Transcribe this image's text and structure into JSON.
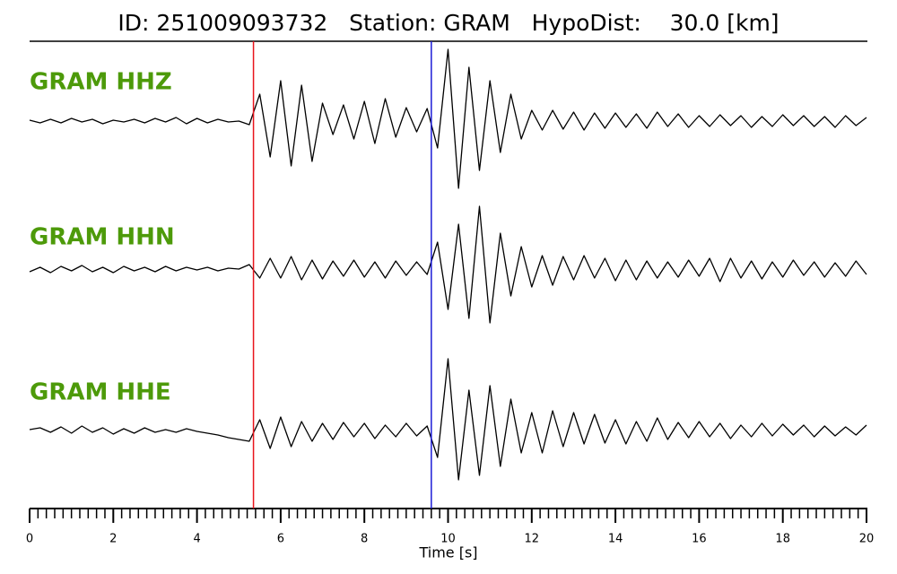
{
  "chart_data": {
    "type": "seismogram",
    "title": "ID: 251009093732   Station: GRAM   HypoDist:    30.0 [km]",
    "x_label": "Time [s]",
    "label_color": "#4d9a0a",
    "xlim": [
      0,
      20
    ],
    "xticks": [
      0,
      2,
      4,
      6,
      8,
      10,
      12,
      14,
      16,
      18,
      20
    ],
    "xminorticks": [
      0.2,
      0.4,
      0.6,
      0.8,
      1,
      1.2,
      1.4,
      1.6,
      1.8,
      2.2,
      2.4,
      2.6,
      2.8,
      3,
      3.2,
      3.4,
      3.6,
      3.8,
      4.2,
      4.4,
      4.6,
      4.8,
      5,
      5.2,
      5.4,
      5.6,
      5.8,
      6.2,
      6.4,
      6.6,
      6.8,
      7,
      7.2,
      7.4,
      7.6,
      7.8,
      8.2,
      8.4,
      8.6,
      8.8,
      9,
      9.2,
      9.4,
      9.6,
      9.8,
      10.2,
      10.4,
      10.6,
      10.8,
      11,
      11.2,
      11.4,
      11.6,
      11.8,
      12.2,
      12.4,
      12.6,
      12.8,
      13,
      13.2,
      13.4,
      13.6,
      13.8,
      14.2,
      14.4,
      14.6,
      14.8,
      15,
      15.2,
      15.4,
      15.6,
      15.8,
      16.2,
      16.4,
      16.6,
      16.8,
      17,
      17.2,
      17.4,
      17.6,
      17.8,
      18.2,
      18.4,
      18.6,
      18.8,
      19,
      19.2,
      19.4,
      19.6,
      19.8
    ],
    "picks": [
      {
        "value": 5.35,
        "color": "#e8141c"
      },
      {
        "value": 9.6,
        "color": "#1b1bd6"
      }
    ],
    "x": [
      0,
      0.25,
      0.5,
      0.75,
      1,
      1.25,
      1.5,
      1.75,
      2,
      2.25,
      2.5,
      2.75,
      3,
      3.25,
      3.5,
      3.75,
      4,
      4.25,
      4.5,
      4.75,
      5,
      5.25,
      5.5,
      5.75,
      6,
      6.25,
      6.5,
      6.75,
      7,
      7.25,
      7.5,
      7.75,
      8,
      8.25,
      8.5,
      8.75,
      9,
      9.25,
      9.5,
      9.75,
      10,
      10.25,
      10.5,
      10.75,
      11,
      11.25,
      11.5,
      11.75,
      12,
      12.25,
      12.5,
      12.75,
      13,
      13.25,
      13.5,
      13.75,
      14,
      14.25,
      14.5,
      14.75,
      15,
      15.25,
      15.5,
      15.75,
      16,
      16.25,
      16.5,
      16.75,
      17,
      17.25,
      17.5,
      17.75,
      18,
      18.25,
      18.5,
      18.75,
      19,
      19.25,
      19.5,
      19.75,
      20
    ],
    "series": [
      {
        "name": "GRAM HHZ",
        "color": "#000000",
        "values": [
          1,
          -2,
          2,
          -2,
          3,
          -1,
          2,
          -3,
          1,
          -1,
          2,
          -2,
          3,
          -1,
          4,
          -3,
          3,
          -2,
          2,
          -1,
          0,
          -4,
          30,
          -40,
          45,
          -50,
          40,
          -45,
          20,
          -15,
          18,
          -20,
          22,
          -25,
          25,
          -18,
          15,
          -12,
          14,
          -30,
          80,
          -75,
          60,
          -55,
          45,
          -35,
          30,
          -20,
          12,
          -10,
          12,
          -9,
          10,
          -10,
          9,
          -8,
          9,
          -7,
          8,
          -8,
          10,
          -6,
          8,
          -7,
          6,
          -6,
          7,
          -5,
          6,
          -7,
          5,
          -6,
          7,
          -5,
          6,
          -6,
          5,
          -7,
          6,
          -5,
          4
        ]
      },
      {
        "name": "GRAM HHN",
        "color": "#000000",
        "values": [
          -3,
          2,
          -4,
          3,
          -2,
          4,
          -3,
          2,
          -4,
          3,
          -2,
          2,
          -3,
          3,
          -2,
          2,
          -1,
          2,
          -2,
          1,
          0,
          5,
          -10,
          12,
          -10,
          14,
          -12,
          10,
          -11,
          9,
          -8,
          10,
          -9,
          8,
          -10,
          9,
          -7,
          8,
          -6,
          30,
          -45,
          50,
          -55,
          70,
          -60,
          40,
          -30,
          25,
          -20,
          15,
          -18,
          14,
          -12,
          15,
          -10,
          12,
          -13,
          10,
          -12,
          9,
          -10,
          8,
          -9,
          10,
          -8,
          12,
          -14,
          12,
          -10,
          9,
          -11,
          8,
          -9,
          10,
          -7,
          8,
          -9,
          7,
          -8,
          9,
          -6
        ]
      },
      {
        "name": "GRAM HHE",
        "color": "#000000",
        "values": [
          1,
          3,
          -2,
          4,
          -3,
          5,
          -2,
          3,
          -4,
          2,
          -3,
          3,
          -2,
          1,
          -2,
          2,
          -1,
          -3,
          -5,
          -8,
          -10,
          -12,
          12,
          -20,
          15,
          -18,
          10,
          -12,
          8,
          -10,
          9,
          -7,
          8,
          -9,
          6,
          -7,
          8,
          -6,
          5,
          -30,
          80,
          -55,
          45,
          -50,
          50,
          -40,
          35,
          -25,
          20,
          -25,
          22,
          -18,
          20,
          -15,
          18,
          -14,
          12,
          -15,
          10,
          -12,
          14,
          -10,
          9,
          -8,
          10,
          -7,
          8,
          -9,
          6,
          -7,
          8,
          -6,
          7,
          -5,
          6,
          -7,
          5,
          -6,
          4,
          -5,
          6
        ]
      }
    ]
  }
}
